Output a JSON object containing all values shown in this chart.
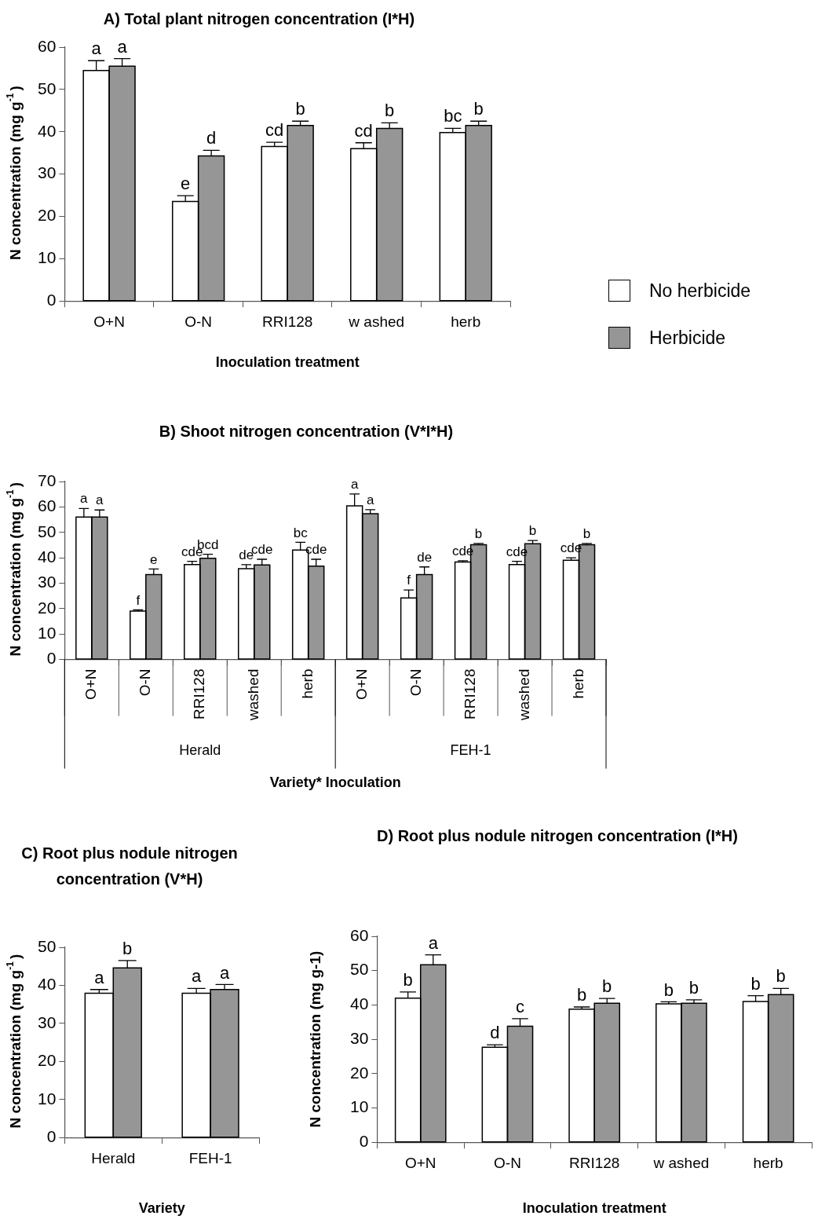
{
  "chart_data": [
    {
      "type": "bar",
      "title": "A) Total plant nitrogen concentration (I*H)",
      "xlabel": "Inoculation treatment",
      "ylabel": "N concentration (mg g$^{-1}$)",
      "categories": [
        "O+N",
        "O-N",
        "RRI128",
        "w ashed",
        "herb"
      ],
      "ylim": [
        0,
        60
      ],
      "yticks": [
        0,
        10,
        20,
        30,
        40,
        50,
        60
      ],
      "grid": false,
      "legend": "right",
      "series": [
        {
          "name": "No herbicide",
          "color": "#ffffff",
          "values": [
            54.5,
            23.5,
            36.5,
            36,
            39.8
          ],
          "errors": [
            2.3,
            1.4,
            1.0,
            1.4,
            1.0
          ],
          "value_labels": [
            "a",
            "e",
            "cd",
            "cd",
            "bc"
          ]
        },
        {
          "name": "Herbicide",
          "color": "#969696",
          "values": [
            55.5,
            34.3,
            41.5,
            40.8,
            41.5
          ],
          "errors": [
            1.8,
            1.3,
            1.0,
            1.3,
            1.0
          ],
          "value_labels": [
            "a",
            "d",
            "b",
            "b",
            "b"
          ]
        }
      ]
    },
    {
      "type": "bar",
      "title": "B) Shoot nitrogen concentration (V*I*H)",
      "xlabel": "Variety* Inoculation",
      "ylabel": "N concentration (mg g$^{-1}$)",
      "categories": [
        "O+N",
        "O-N",
        "RRI128",
        "washed",
        "herb",
        "O+N",
        "O-N",
        "RRI128",
        "washed",
        "herb"
      ],
      "ylim": [
        0,
        70
      ],
      "yticks": [
        0,
        10,
        20,
        30,
        40,
        50,
        60,
        70
      ],
      "grid": false,
      "legend": false,
      "annotations": [
        "Herald",
        "FEH-1"
      ],
      "series": [
        {
          "color": "#ffffff",
          "values": [
            56.0,
            19.0,
            37.3,
            35.7,
            43.0,
            60.4,
            24.2,
            38.3,
            37.3,
            39.0
          ],
          "errors": [
            3.4,
            0.5,
            1.3,
            1.6,
            3.1,
            4.7,
            3.1,
            0.5,
            1.3,
            1.0
          ],
          "value_labels": [
            "a",
            "f",
            "cde",
            "de",
            "bc",
            "a",
            "f",
            "cde",
            "cde",
            "cde"
          ]
        },
        {
          "color": "#969696",
          "values": [
            56.0,
            33.4,
            39.8,
            37.2,
            36.7,
            57.3,
            33.4,
            45.1,
            45.5,
            45.1
          ],
          "errors": [
            2.8,
            2.2,
            1.6,
            2.2,
            2.7,
            1.6,
            3.0,
            0.5,
            1.3,
            0.5
          ],
          "value_labels": [
            "a",
            "e",
            "bcd",
            "cde",
            "cde",
            "a",
            "de",
            "b",
            "b",
            "b"
          ]
        }
      ]
    },
    {
      "type": "bar",
      "title": "C) Root plus nodule nitrogen concentration (V*H)",
      "xlabel": "Variety",
      "ylabel": "N concentration (mg g$^{-1}$)",
      "categories": [
        "Herald",
        "FEH-1"
      ],
      "ylim": [
        0,
        50
      ],
      "yticks": [
        0,
        10,
        20,
        30,
        40,
        50
      ],
      "grid": false,
      "legend": false,
      "series": [
        {
          "color": "#ffffff",
          "values": [
            37.9,
            37.9
          ],
          "errors": [
            1.0,
            1.3
          ],
          "value_labels": [
            "a",
            "a"
          ]
        },
        {
          "color": "#969696",
          "values": [
            44.6,
            38.9
          ],
          "errors": [
            1.9,
            1.3
          ],
          "value_labels": [
            "b",
            "a"
          ]
        }
      ]
    },
    {
      "type": "bar",
      "title": "D) Root plus nodule nitrogen concentration (I*H)",
      "xlabel": "Inoculation treatment",
      "ylabel": "N concentration (mg g-1)",
      "categories": [
        "O+N",
        "O-N",
        "RRI128",
        "w ashed",
        "herb"
      ],
      "ylim": [
        0,
        60
      ],
      "yticks": [
        0,
        10,
        20,
        30,
        40,
        50,
        60
      ],
      "grid": false,
      "legend": false,
      "series": [
        {
          "color": "#ffffff",
          "values": [
            42.0,
            27.7,
            38.8,
            40.3,
            41.0
          ],
          "errors": [
            1.8,
            0.7,
            0.6,
            0.6,
            1.7
          ],
          "value_labels": [
            "b",
            "d",
            "b",
            "b",
            "b"
          ]
        },
        {
          "color": "#969696",
          "values": [
            51.7,
            33.8,
            40.5,
            40.5,
            43.0
          ],
          "errors": [
            2.9,
            2.2,
            1.4,
            1.0,
            1.8
          ],
          "value_labels": [
            "a",
            "c",
            "b",
            "b",
            "b"
          ]
        }
      ]
    }
  ]
}
